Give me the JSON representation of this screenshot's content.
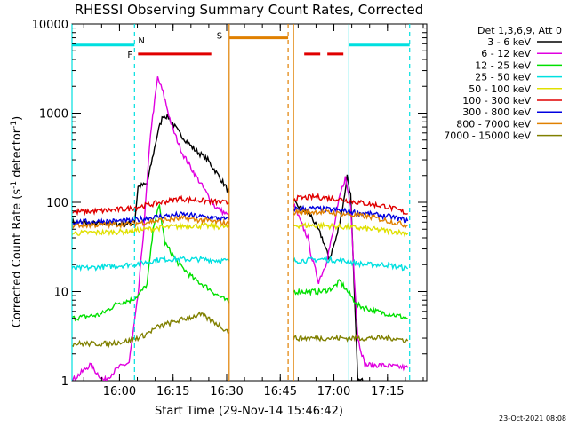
{
  "chart_data": {
    "type": "line",
    "title": "RHESSI Observing Summary Count Rates, Corrected",
    "xlabel": "Start Time (29-Nov-14 15:46:42)",
    "ylabel_main": "Corrected Count Rate (s",
    "ylabel_sup": "-1",
    "ylabel_rest": " detector",
    "ylabel_sup2": "-1",
    "ylabel_end": ")",
    "y_scale": "log",
    "ylim": [
      1,
      10000
    ],
    "xlim_minutes": [
      0,
      99.3
    ],
    "x_ticks": [
      {
        "label": "16:00",
        "min": 13.3
      },
      {
        "label": "16:15",
        "min": 28.3
      },
      {
        "label": "16:30",
        "min": 43.3
      },
      {
        "label": "16:45",
        "min": 58.3
      },
      {
        "label": "17:00",
        "min": 73.3
      },
      {
        "label": "17:15",
        "min": 88.3
      }
    ],
    "y_ticks": [
      {
        "label": "1",
        "value": 1
      },
      {
        "label": "10",
        "value": 10
      },
      {
        "label": "100",
        "value": 100
      },
      {
        "label": "1000",
        "value": 1000
      },
      {
        "label": "10000",
        "value": 10000
      }
    ],
    "legend_title": "Det 1,3,6,9, Att 0",
    "legend_position": "right",
    "series": [
      {
        "name": "3 - 6 keV",
        "color": "#000000",
        "segments": [
          [
            [
              0,
              60
            ],
            [
              10,
              57
            ],
            [
              17.5,
              58
            ],
            [
              18.5,
              150
            ],
            [
              21,
              160
            ],
            [
              24,
              600
            ],
            [
              25.5,
              950
            ],
            [
              27,
              900
            ],
            [
              30,
              600
            ],
            [
              34,
              400
            ],
            [
              38,
              300
            ],
            [
              41,
              200
            ],
            [
              44,
              130
            ]
          ],
          [
            [
              62,
              100
            ],
            [
              65,
              80
            ],
            [
              67,
              70
            ],
            [
              70,
              40
            ],
            [
              72,
              23
            ],
            [
              74,
              40
            ],
            [
              76,
              100
            ],
            [
              77,
              200
            ],
            [
              78,
              120
            ],
            [
              79,
              10
            ],
            [
              80,
              1
            ],
            [
              83,
              1
            ]
          ]
        ]
      },
      {
        "name": "6 - 12 keV",
        "color": "#e000e0",
        "segments": [
          [
            [
              0,
              1
            ],
            [
              5,
              1.5
            ],
            [
              9,
              1
            ],
            [
              13,
              1.4
            ],
            [
              16,
              1.6
            ],
            [
              18.5,
              9
            ],
            [
              20,
              45
            ],
            [
              22,
              600
            ],
            [
              24,
              2500
            ],
            [
              25.5,
              1700
            ],
            [
              28,
              700
            ],
            [
              31,
              350
            ],
            [
              34,
              220
            ],
            [
              37,
              140
            ],
            [
              40,
              90
            ],
            [
              44,
              70
            ]
          ],
          [
            [
              62,
              95
            ],
            [
              64,
              60
            ],
            [
              66,
              40
            ],
            [
              67,
              25
            ],
            [
              69,
              13
            ],
            [
              71,
              20
            ],
            [
              73,
              45
            ],
            [
              75,
              120
            ],
            [
              76.5,
              190
            ],
            [
              78,
              90
            ],
            [
              79,
              15
            ],
            [
              80,
              3
            ],
            [
              82,
              1.5
            ],
            [
              86,
              1.5
            ],
            [
              94,
              1.4
            ]
          ]
        ]
      },
      {
        "name": "12 - 25 keV",
        "color": "#00e000",
        "segments": [
          [
            [
              0,
              5
            ],
            [
              8,
              5.5
            ],
            [
              13,
              7.5
            ],
            [
              16.5,
              8
            ],
            [
              18.5,
              9
            ],
            [
              21,
              12
            ],
            [
              23,
              60
            ],
            [
              24.5,
              90
            ],
            [
              26,
              35
            ],
            [
              30,
              20
            ],
            [
              34,
              14
            ],
            [
              38,
              11
            ],
            [
              41,
              9
            ],
            [
              44,
              7.5
            ]
          ],
          [
            [
              62,
              10
            ],
            [
              65,
              10
            ],
            [
              70,
              10
            ],
            [
              73,
              11
            ],
            [
              75,
              13
            ],
            [
              78,
              9
            ],
            [
              80,
              7
            ],
            [
              85,
              6
            ],
            [
              90,
              5.5
            ],
            [
              94,
              5
            ]
          ]
        ]
      },
      {
        "name": "25 - 50 keV",
        "color": "#00e0e0",
        "segments": [
          [
            [
              0,
              18
            ],
            [
              10,
              19
            ],
            [
              16,
              20
            ],
            [
              20,
              21
            ],
            [
              25,
              23
            ],
            [
              30,
              23
            ],
            [
              36,
              23
            ],
            [
              44,
              22
            ]
          ],
          [
            [
              62,
              22
            ],
            [
              70,
              23
            ],
            [
              76,
              22
            ],
            [
              82,
              20
            ],
            [
              88,
              20
            ],
            [
              94,
              18
            ]
          ]
        ]
      },
      {
        "name": "50 - 100 keV",
        "color": "#e0e000",
        "segments": [
          [
            [
              0,
              45
            ],
            [
              8,
              46
            ],
            [
              15,
              47
            ],
            [
              25,
              52
            ],
            [
              33,
              55
            ],
            [
              44,
              53
            ]
          ],
          [
            [
              62,
              55
            ],
            [
              70,
              55
            ],
            [
              76,
              53
            ],
            [
              84,
              50
            ],
            [
              90,
              47
            ],
            [
              94,
              45
            ]
          ]
        ]
      },
      {
        "name": "100 - 300 keV",
        "color": "#e00000",
        "segments": [
          [
            [
              0,
              78
            ],
            [
              8,
              80
            ],
            [
              16,
              85
            ],
            [
              25,
              100
            ],
            [
              30,
              110
            ],
            [
              36,
              105
            ],
            [
              44,
              98
            ]
          ],
          [
            [
              62,
              110
            ],
            [
              68,
              115
            ],
            [
              74,
              110
            ],
            [
              80,
              100
            ],
            [
              88,
              90
            ],
            [
              94,
              75
            ]
          ]
        ]
      },
      {
        "name": "300 - 800 keV",
        "color": "#0000e0",
        "segments": [
          [
            [
              0,
              60
            ],
            [
              8,
              61
            ],
            [
              16,
              62
            ],
            [
              25,
              70
            ],
            [
              31,
              73
            ],
            [
              38,
              68
            ],
            [
              44,
              64
            ]
          ],
          [
            [
              62,
              85
            ],
            [
              68,
              85
            ],
            [
              74,
              82
            ],
            [
              82,
              75
            ],
            [
              90,
              68
            ],
            [
              94,
              62
            ]
          ]
        ]
      },
      {
        "name": "800 - 7000 keV",
        "color": "#e08000",
        "segments": [
          [
            [
              0,
              55
            ],
            [
              8,
              56
            ],
            [
              16,
              57
            ],
            [
              25,
              63
            ],
            [
              31,
              66
            ],
            [
              38,
              62
            ],
            [
              44,
              58
            ]
          ],
          [
            [
              62,
              78
            ],
            [
              70,
              78
            ],
            [
              76,
              74
            ],
            [
              84,
              68
            ],
            [
              90,
              60
            ],
            [
              94,
              55
            ]
          ]
        ]
      },
      {
        "name": "7000 - 15000 keV",
        "color": "#808000",
        "segments": [
          [
            [
              0,
              2.6
            ],
            [
              10,
              2.6
            ],
            [
              16,
              2.8
            ],
            [
              20,
              3.2
            ],
            [
              24,
              4
            ],
            [
              28,
              4.5
            ],
            [
              32,
              5
            ],
            [
              36,
              5.5
            ],
            [
              40,
              4.5
            ],
            [
              44,
              3.5
            ]
          ],
          [
            [
              62,
              3
            ],
            [
              70,
              3
            ],
            [
              75,
              3
            ],
            [
              80,
              3
            ],
            [
              85,
              3
            ],
            [
              90,
              3
            ],
            [
              94,
              2.8
            ]
          ]
        ]
      }
    ],
    "markers": [
      {
        "label": "N",
        "color": "#00e0e0",
        "x_start": 0,
        "x_end": 17.5,
        "value": 5800,
        "vline": 17.5,
        "dashed": true
      },
      {
        "label": "F",
        "color": "#e00000",
        "x_start": 18.5,
        "x_end": 39,
        "value": 4600,
        "dashed_bar": false
      },
      {
        "label": "S",
        "color": "#e08000",
        "x_start": 44,
        "x_end": 60.5,
        "value": 7000,
        "vline_left": 44,
        "vline_right": 60.5
      },
      {
        "label": "",
        "color": "#e00000",
        "x_start": 65,
        "x_end": 77,
        "value": 4600,
        "dashed_bar": true
      },
      {
        "label": "",
        "color": "#00e0e0",
        "x_start": 77.5,
        "x_end": 94.5,
        "value": 5800,
        "vline_left": 77.5,
        "vline_right": 94.5
      }
    ],
    "saa_lines": [
      {
        "color": "#00e0e0",
        "x": 0,
        "dashed": false
      },
      {
        "color": "#00e0e0",
        "x": 17.5,
        "dashed": true
      },
      {
        "color": "#e08000",
        "x": 44,
        "dashed": false
      },
      {
        "color": "#e08000",
        "x": 60.5,
        "dashed": true
      },
      {
        "color": "#e08000",
        "x": 62,
        "dashed": false
      },
      {
        "color": "#00e0e0",
        "x": 77.5,
        "dashed": false
      },
      {
        "color": "#00e0e0",
        "x": 94.5,
        "dashed": true
      }
    ]
  },
  "footer_date": "23-Oct-2021 08:08"
}
